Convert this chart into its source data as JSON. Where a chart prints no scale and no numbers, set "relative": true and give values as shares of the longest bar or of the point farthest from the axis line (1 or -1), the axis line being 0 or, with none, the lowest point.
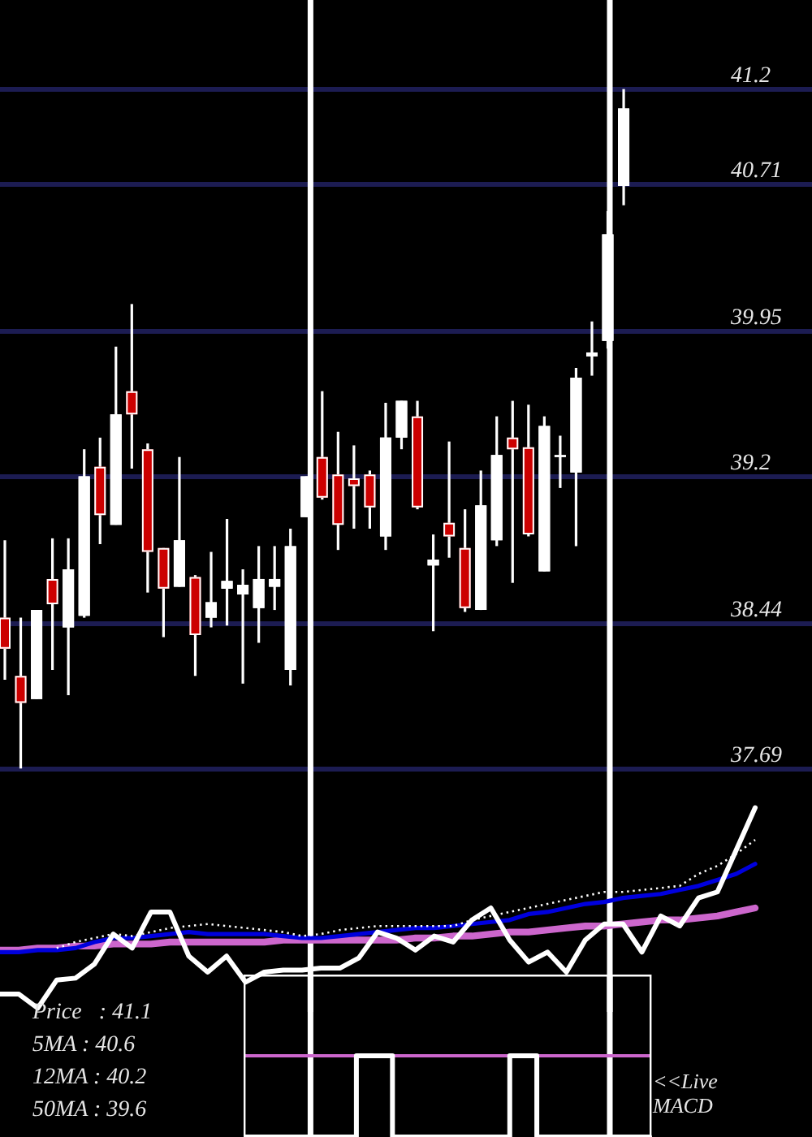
{
  "chart_data": [
    {
      "type": "candlestick",
      "categories": [
        null,
        null,
        null,
        null,
        null,
        null,
        null,
        null,
        null,
        null,
        null,
        null,
        null,
        null,
        null,
        null,
        null,
        null,
        null,
        null,
        null,
        null,
        null,
        null,
        null,
        null,
        null,
        null,
        null,
        null,
        null,
        null,
        null,
        null,
        null,
        null,
        null,
        null,
        null,
        null
      ],
      "ohlc": [
        [
          38.47,
          38.87,
          38.15,
          38.31
        ],
        [
          38.17,
          38.47,
          37.69,
          38.03
        ],
        [
          38.05,
          38.51,
          38.05,
          38.51
        ],
        [
          38.67,
          38.88,
          38.2,
          38.54
        ],
        [
          38.42,
          38.88,
          38.07,
          38.72
        ],
        [
          38.48,
          39.34,
          38.47,
          39.2
        ],
        [
          39.25,
          39.4,
          38.85,
          39.0
        ],
        [
          38.95,
          39.87,
          38.95,
          39.52
        ],
        [
          39.64,
          40.09,
          39.24,
          39.52
        ],
        [
          39.34,
          39.37,
          38.6,
          38.81
        ],
        [
          38.83,
          38.83,
          38.37,
          38.62
        ],
        [
          38.63,
          39.3,
          38.63,
          38.87
        ],
        [
          38.68,
          38.69,
          38.17,
          38.38
        ],
        [
          38.47,
          38.81,
          38.42,
          38.55
        ],
        [
          38.62,
          38.98,
          38.43,
          38.66
        ],
        [
          38.59,
          38.72,
          38.13,
          38.64
        ],
        [
          38.52,
          38.84,
          38.34,
          38.67
        ],
        [
          38.63,
          38.84,
          38.51,
          38.67
        ],
        [
          38.2,
          38.93,
          38.12,
          38.84
        ],
        [
          38.99,
          39.2,
          38.99,
          39.2
        ],
        [
          39.3,
          39.64,
          39.08,
          39.09
        ],
        [
          39.21,
          39.43,
          38.82,
          38.95
        ],
        [
          39.19,
          39.36,
          38.93,
          39.15
        ],
        [
          39.21,
          39.23,
          38.93,
          39.04
        ],
        [
          38.89,
          39.58,
          38.82,
          39.4
        ],
        [
          39.4,
          39.59,
          39.34,
          39.59
        ],
        [
          39.51,
          39.59,
          39.03,
          39.04
        ],
        [
          38.74,
          38.9,
          38.4,
          38.77
        ],
        [
          38.96,
          39.38,
          38.78,
          38.89
        ],
        [
          38.83,
          39.03,
          38.5,
          38.52
        ],
        [
          38.51,
          39.23,
          38.51,
          39.05
        ],
        [
          38.87,
          39.51,
          38.84,
          39.31
        ],
        [
          39.4,
          39.59,
          38.65,
          39.34
        ],
        [
          39.35,
          39.57,
          38.89,
          38.9
        ],
        [
          38.71,
          39.51,
          38.71,
          39.46
        ],
        [
          39.3,
          39.41,
          39.14,
          39.31
        ],
        [
          39.22,
          39.76,
          38.84,
          39.71
        ],
        [
          39.82,
          40.0,
          39.72,
          39.84
        ],
        [
          39.9,
          40.57,
          39.86,
          40.45
        ],
        [
          40.7,
          41.2,
          40.6,
          41.1
        ]
      ],
      "colors": [
        "#cc0000",
        "#cc0000",
        "#ffffff",
        "#cc0000",
        "#ffffff",
        "#ffffff",
        "#cc0000",
        "#ffffff",
        "#cc0000",
        "#cc0000",
        "#cc0000",
        "#ffffff",
        "#cc0000",
        "#ffffff",
        "#ffffff",
        "#ffffff",
        "#ffffff",
        "#ffffff",
        "#ffffff",
        "#ffffff",
        "#cc0000",
        "#cc0000",
        "#cc0000",
        "#cc0000",
        "#ffffff",
        "#ffffff",
        "#cc0000",
        "#ffffff",
        "#cc0000",
        "#cc0000",
        "#ffffff",
        "#ffffff",
        "#cc0000",
        "#cc0000",
        "#ffffff",
        "#ffffff",
        "#ffffff",
        "#ffffff",
        "#ffffff",
        "#ffffff"
      ],
      "ylim": [
        37.69,
        41.66
      ],
      "yticks": [
        37.69,
        38.44,
        39.2,
        39.95,
        40.71,
        41.2
      ],
      "grid": "y",
      "tick_labels": "y"
    },
    {
      "type": "line",
      "relative": true,
      "categories": [
        null,
        null,
        null,
        null,
        null,
        null,
        null,
        null,
        null,
        null,
        null,
        null,
        null,
        null,
        null,
        null,
        null,
        null,
        null,
        null,
        null,
        null,
        null,
        null,
        null,
        null,
        null,
        null,
        null,
        null,
        null,
        null,
        null,
        null,
        null,
        null,
        null,
        null,
        null,
        null,
        null
      ],
      "series": [
        {
          "color": "#ffffff",
          "values": [
            0.07,
            0.07,
            0,
            0.14,
            0.15,
            0.22,
            0.37,
            0.3,
            0.48,
            0.48,
            0.26,
            0.18,
            0.26,
            0.13,
            0.18,
            0.19,
            0.19,
            0.2,
            0.2,
            0.25,
            0.38,
            0.35,
            0.29,
            0.36,
            0.33,
            0.44,
            0.5,
            0.34,
            0.23,
            0.28,
            0.18,
            0.34,
            0.42,
            0.42,
            0.28,
            0.46,
            0.41,
            0.55,
            0.58,
            0.79,
            1
          ]
        },
        {
          "color": "#ffffff",
          "line_style": "dotted",
          "values": [
            null,
            null,
            null,
            0.3,
            0.33,
            0.35,
            0.37,
            0.36,
            0.38,
            0.4,
            0.41,
            0.42,
            0.41,
            0.4,
            0.39,
            0.38,
            0.36,
            0.37,
            0.39,
            0.4,
            0.41,
            0.41,
            0.41,
            0.41,
            0.41,
            0.44,
            0.46,
            0.48,
            0.5,
            0.52,
            0.54,
            0.56,
            0.58,
            0.58,
            0.59,
            0.6,
            0.61,
            0.67,
            0.71,
            0.77,
            0.84
          ]
        },
        {
          "color": "#0000dd",
          "values": [
            0.28,
            0.28,
            0.29,
            0.29,
            0.3,
            0.33,
            0.35,
            0.35,
            0.36,
            0.37,
            0.38,
            0.37,
            0.37,
            0.37,
            0.37,
            0.36,
            0.35,
            0.35,
            0.36,
            0.37,
            0.38,
            0.39,
            0.4,
            0.4,
            0.41,
            0.42,
            0.43,
            0.44,
            0.47,
            0.48,
            0.5,
            0.52,
            0.53,
            0.55,
            0.56,
            0.57,
            0.59,
            0.61,
            0.64,
            0.67,
            0.72
          ]
        },
        {
          "color": "#cc66cc",
          "values": [
            0.29,
            0.29,
            0.3,
            0.3,
            0.31,
            0.31,
            0.32,
            0.32,
            0.32,
            0.33,
            0.33,
            0.33,
            0.33,
            0.33,
            0.33,
            0.34,
            0.34,
            0.34,
            0.34,
            0.34,
            0.34,
            0.34,
            0.35,
            0.35,
            0.36,
            0.36,
            0.37,
            0.38,
            0.38,
            0.39,
            0.4,
            0.41,
            0.41,
            0.42,
            0.43,
            0.44,
            0.44,
            0.45,
            0.46,
            0.48,
            0.5
          ]
        }
      ]
    },
    {
      "type": "other",
      "annotations": [
        "Price   : 41.1",
        "5MA : 40.6",
        "12MA : 40.2",
        "50MA : 39.6"
      ]
    },
    {
      "type": "line",
      "relative": true,
      "categories": [
        null,
        null,
        null,
        null,
        null,
        null,
        null,
        null,
        null,
        null,
        null,
        null,
        null,
        null,
        null,
        null,
        null,
        null,
        null,
        null,
        null,
        null,
        null,
        null,
        null,
        null,
        null,
        null,
        null,
        null,
        null,
        null,
        null,
        null,
        null,
        null,
        null,
        null,
        null,
        null,
        null,
        null,
        null,
        null,
        null,
        null
      ],
      "series": [
        {
          "type": "step",
          "color": "#ffffff",
          "values": [
            0,
            0,
            0,
            0,
            0,
            0,
            0,
            0,
            0,
            0,
            0,
            0,
            0,
            1,
            1,
            1,
            1,
            0,
            0,
            0,
            0,
            0,
            0,
            0,
            0,
            0,
            0,
            0,
            0,
            0,
            1,
            1,
            1,
            0,
            0,
            0,
            0,
            0,
            0,
            0,
            0,
            0,
            0,
            0,
            0,
            0
          ]
        },
        {
          "color": "#cc66cc",
          "values": [
            1,
            1,
            1,
            1,
            1,
            1,
            1,
            1,
            1,
            1,
            1,
            1,
            1,
            1,
            1,
            1,
            1,
            1,
            1,
            1,
            1,
            1,
            1,
            1,
            1,
            1,
            1,
            1,
            1,
            1,
            1,
            1,
            1,
            1,
            1,
            1,
            1,
            1,
            1,
            1,
            1,
            1,
            1,
            1,
            1,
            1
          ]
        }
      ],
      "annotations": [
        "<<Live MACD"
      ]
    }
  ]
}
